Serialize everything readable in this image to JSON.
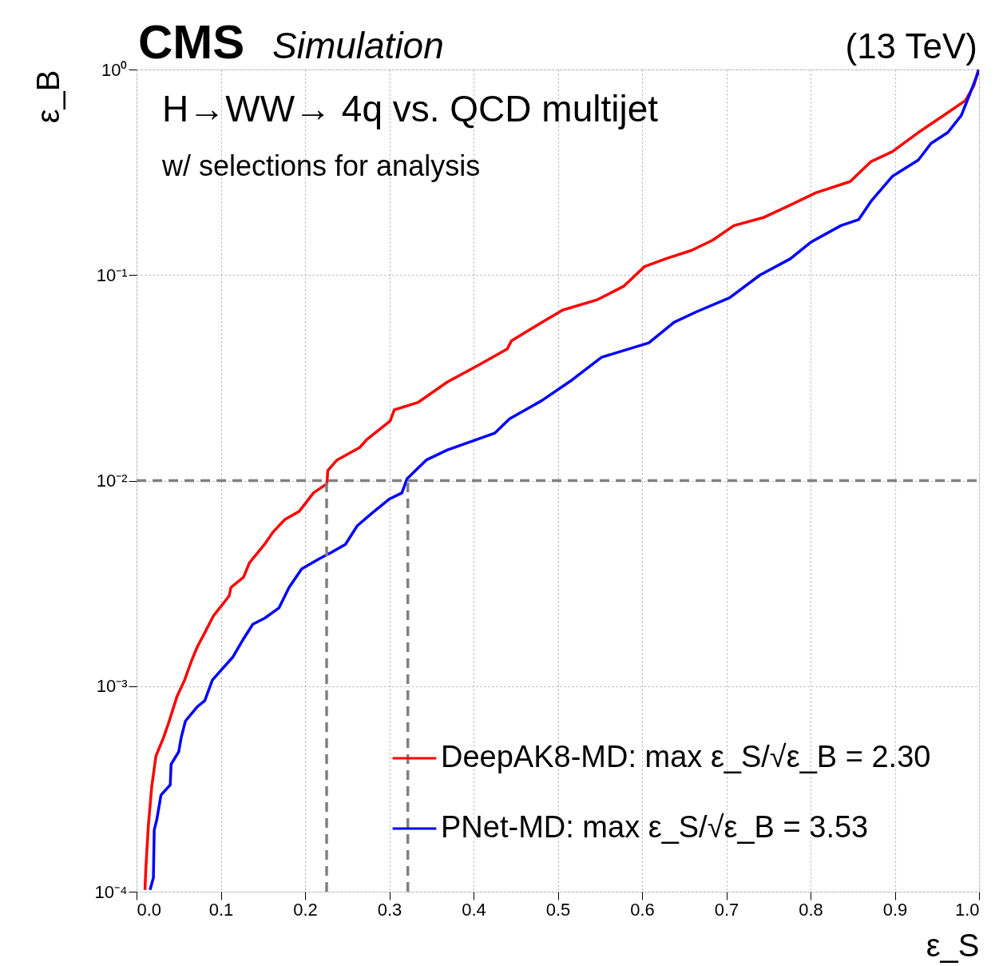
{
  "chart_data": {
    "type": "line",
    "title": "CMS",
    "subtitle": "Simulation",
    "annotations": [
      "(13 TeV)",
      "H→WW→ 4q vs. QCD multijet",
      "w/ selections for analysis"
    ],
    "xlabel": "ε_S",
    "ylabel": "ε_B",
    "xlim": [
      0,
      1
    ],
    "xticks": [
      {
        "value": 0,
        "label": "0.0"
      },
      0.1,
      0.2,
      0.3,
      0.4,
      0.5,
      0.6,
      0.7,
      0.8,
      0.9,
      {
        "value": 1,
        "label": "1.0"
      }
    ],
    "ylim": [
      0.0001,
      1
    ],
    "yticks": [
      {
        "value": 0.0001,
        "label": "10⁻⁴"
      },
      {
        "value": 0.001,
        "label": "10⁻³"
      },
      {
        "value": 0.01,
        "label": "10⁻²"
      },
      {
        "value": 0.1,
        "label": "10⁻¹"
      },
      {
        "value": 1,
        "label": "10⁰"
      }
    ],
    "log": "y",
    "grid": true,
    "legend": "bottom right",
    "line_style": "solid",
    "series": [
      {
        "name": "DeepAK8-MD: max ε_S/√ε_B = 2.30",
        "color": "#ff0000",
        "x": [
          0.01,
          0.011,
          0.014,
          0.018,
          0.023,
          0.032,
          0.038,
          0.048,
          0.057,
          0.065,
          0.072,
          0.081,
          0.091,
          0.11,
          0.112,
          0.127,
          0.134,
          0.152,
          0.162,
          0.176,
          0.193,
          0.21,
          0.226,
          0.227,
          0.238,
          0.265,
          0.273,
          0.301,
          0.306,
          0.334,
          0.369,
          0.405,
          0.44,
          0.445,
          0.481,
          0.506,
          0.547,
          0.578,
          0.603,
          0.628,
          0.659,
          0.684,
          0.709,
          0.745,
          0.776,
          0.806,
          0.847,
          0.872,
          0.897,
          0.928,
          0.958,
          0.984,
          0.994,
          0.999,
          1.0
        ],
        "values": [
          0.000102,
          0.000129,
          0.000209,
          0.000324,
          0.000457,
          0.000562,
          0.000661,
          0.000891,
          0.00107,
          0.00132,
          0.00155,
          0.00182,
          0.00219,
          0.00275,
          0.00302,
          0.00339,
          0.00398,
          0.0049,
          0.00562,
          0.00646,
          0.00708,
          0.00871,
          0.00966,
          0.0112,
          0.0126,
          0.0145,
          0.0158,
          0.0195,
          0.0221,
          0.024,
          0.0302,
          0.0363,
          0.0437,
          0.0479,
          0.0589,
          0.0676,
          0.0759,
          0.0881,
          0.11,
          0.12,
          0.132,
          0.148,
          0.174,
          0.191,
          0.219,
          0.251,
          0.285,
          0.357,
          0.398,
          0.494,
          0.598,
          0.708,
          0.837,
          0.991,
          1.0
        ]
      },
      {
        "name": "PNet-MD: max ε_S/√ε_B = 3.53",
        "color": "#0000ff",
        "x": [
          0.016,
          0.02,
          0.021,
          0.024,
          0.029,
          0.04,
          0.041,
          0.05,
          0.053,
          0.058,
          0.072,
          0.081,
          0.09,
          0.103,
          0.114,
          0.127,
          0.138,
          0.152,
          0.169,
          0.181,
          0.196,
          0.217,
          0.231,
          0.248,
          0.262,
          0.279,
          0.3,
          0.315,
          0.321,
          0.344,
          0.369,
          0.425,
          0.443,
          0.481,
          0.517,
          0.552,
          0.608,
          0.638,
          0.664,
          0.704,
          0.74,
          0.776,
          0.801,
          0.836,
          0.857,
          0.872,
          0.897,
          0.928,
          0.943,
          0.963,
          0.979,
          0.989,
          0.999,
          1.0
        ],
        "values": [
          0.000102,
          0.000117,
          0.0002,
          0.000224,
          0.000295,
          0.000331,
          0.000417,
          0.000479,
          0.000562,
          0.000676,
          0.000794,
          0.000851,
          0.00107,
          0.00123,
          0.00138,
          0.0017,
          0.002,
          0.00214,
          0.0024,
          0.00302,
          0.00372,
          0.00417,
          0.00447,
          0.0049,
          0.00603,
          0.00692,
          0.00813,
          0.00871,
          0.0102,
          0.0126,
          0.0141,
          0.017,
          0.02,
          0.0245,
          0.0309,
          0.0398,
          0.0468,
          0.0589,
          0.0661,
          0.0776,
          0.1,
          0.12,
          0.145,
          0.174,
          0.186,
          0.229,
          0.302,
          0.363,
          0.437,
          0.494,
          0.598,
          0.759,
          0.968,
          1.0
        ]
      },
      {
        "color": "#808080",
        "line_style": "dashed",
        "x": [
          0.0,
          1.0
        ],
        "values": [
          0.01,
          0.01
        ]
      },
      {
        "color": "#808080",
        "line_style": "dashed",
        "x": [
          0.2256,
          0.2256
        ],
        "values": [
          0.0001,
          0.01
        ]
      },
      {
        "color": "#808080",
        "line_style": "dashed",
        "x": [
          0.322,
          0.322
        ],
        "values": [
          0.0001,
          0.01
        ]
      }
    ]
  }
}
